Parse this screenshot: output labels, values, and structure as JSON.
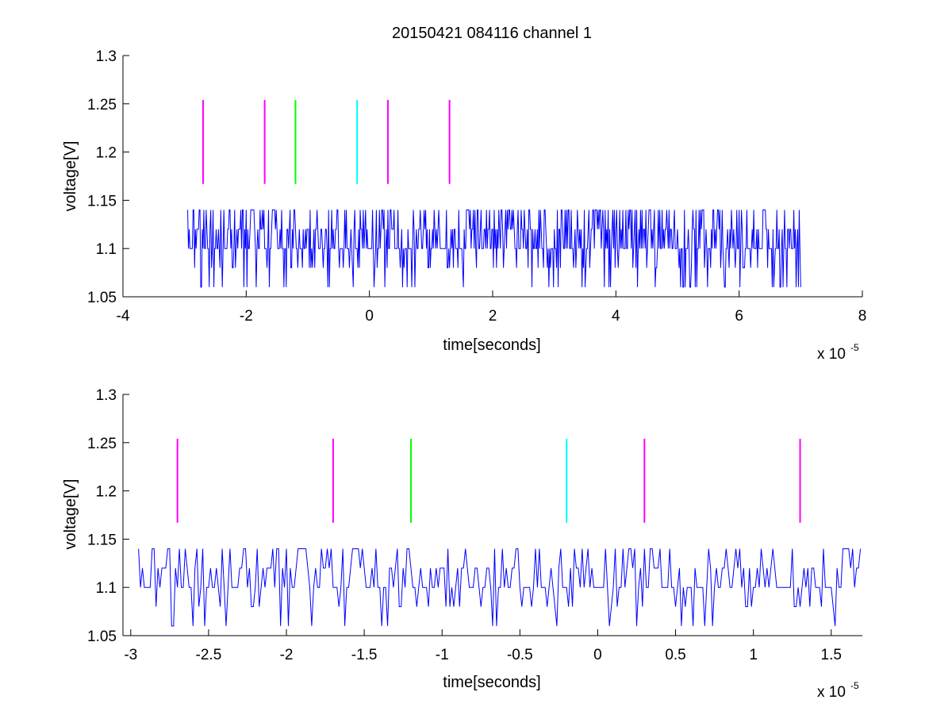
{
  "chart_data": [
    {
      "type": "line",
      "title": "20150421 084116 channel 1",
      "xlabel": "time[seconds]",
      "ylabel": "voltage[V]",
      "x_exponent_label": "x 10",
      "x_exponent": "-5",
      "xlim": [
        -4,
        8
      ],
      "ylim": [
        1.05,
        1.3
      ],
      "x_ticks": [
        -4,
        -2,
        0,
        2,
        4,
        6,
        8
      ],
      "y_ticks": [
        1.05,
        1.1,
        1.15,
        1.2,
        1.25,
        1.3
      ],
      "x_tick_labels": [
        "-4",
        "-2",
        "0",
        "2",
        "4",
        "6",
        "8"
      ],
      "y_tick_labels": [
        "1.05",
        "1.1",
        "1.15",
        "1.2",
        "1.25",
        "1.3"
      ],
      "grid": false,
      "markers": [
        {
          "x": -2.7,
          "y0": 1.167,
          "y1": 1.254,
          "color": "#ff00ff"
        },
        {
          "x": -1.7,
          "y0": 1.167,
          "y1": 1.254,
          "color": "#ff00ff"
        },
        {
          "x": -1.2,
          "y0": 1.167,
          "y1": 1.254,
          "color": "#00ff00"
        },
        {
          "x": -0.2,
          "y0": 1.167,
          "y1": 1.254,
          "color": "#00ffff"
        },
        {
          "x": 0.3,
          "y0": 1.167,
          "y1": 1.254,
          "color": "#ff00ff"
        },
        {
          "x": 1.3,
          "y0": 1.167,
          "y1": 1.254,
          "color": "#ff00ff"
        }
      ],
      "signal": {
        "color": "#0000ff",
        "x_start": -2.95,
        "x_end": 7.0,
        "levels": [
          1.06,
          1.08,
          1.1,
          1.12,
          1.14
        ],
        "baseline": 1.1
      }
    },
    {
      "type": "line",
      "title": "",
      "xlabel": "time[seconds]",
      "ylabel": "voltage[V]",
      "x_exponent_label": "x 10",
      "x_exponent": "-5",
      "xlim": [
        -3.05,
        1.7
      ],
      "ylim": [
        1.05,
        1.3
      ],
      "x_ticks": [
        -3,
        -2.5,
        -2,
        -1.5,
        -1,
        -0.5,
        0,
        0.5,
        1,
        1.5
      ],
      "y_ticks": [
        1.05,
        1.1,
        1.15,
        1.2,
        1.25,
        1.3
      ],
      "x_tick_labels": [
        "-3",
        "-2.5",
        "-2",
        "-1.5",
        "-1",
        "-0.5",
        "0",
        "0.5",
        "1",
        "1.5"
      ],
      "y_tick_labels": [
        "1.05",
        "1.1",
        "1.15",
        "1.2",
        "1.25",
        "1.3"
      ],
      "grid": false,
      "markers": [
        {
          "x": -2.7,
          "y0": 1.167,
          "y1": 1.254,
          "color": "#ff00ff"
        },
        {
          "x": -1.7,
          "y0": 1.167,
          "y1": 1.254,
          "color": "#ff00ff"
        },
        {
          "x": -1.2,
          "y0": 1.167,
          "y1": 1.254,
          "color": "#00ff00"
        },
        {
          "x": -0.2,
          "y0": 1.167,
          "y1": 1.254,
          "color": "#00ffff"
        },
        {
          "x": 0.3,
          "y0": 1.167,
          "y1": 1.254,
          "color": "#ff00ff"
        },
        {
          "x": 1.3,
          "y0": 1.167,
          "y1": 1.254,
          "color": "#ff00ff"
        }
      ],
      "signal": {
        "color": "#0000ff",
        "x_start": -2.95,
        "x_end": 1.7,
        "levels": [
          1.06,
          1.08,
          1.1,
          1.12,
          1.14
        ],
        "baseline": 1.1
      }
    }
  ]
}
